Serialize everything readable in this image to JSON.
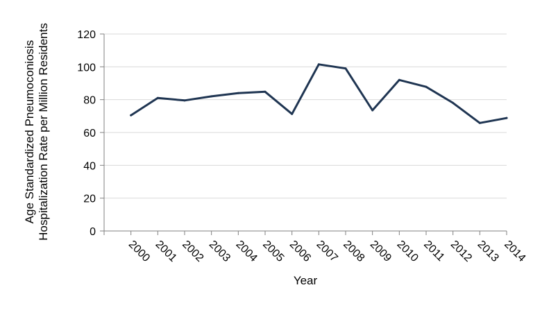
{
  "chart_data": {
    "type": "line",
    "title": "",
    "xlabel": "Year",
    "ylabel_lines": [
      "Age Standardized Pneumoconiosis",
      "Hospitalization Rate per Million Residents"
    ],
    "categories": [
      "2000",
      "2001",
      "2002",
      "2003",
      "2004",
      "2005",
      "2006",
      "2007",
      "2008",
      "2009",
      "2010",
      "2011",
      "2012",
      "2013",
      "2014"
    ],
    "series": [
      {
        "values": [
          70.5,
          81,
          79.5,
          82,
          84,
          84.8,
          71.3,
          101.5,
          99,
          73.5,
          92,
          87.8,
          78,
          65.8,
          68.8
        ],
        "color": "#1f3552"
      }
    ],
    "ylim": [
      0,
      120
    ],
    "yticks": [
      0,
      20,
      40,
      60,
      80,
      100,
      120
    ],
    "grid": true,
    "legend": "none"
  }
}
